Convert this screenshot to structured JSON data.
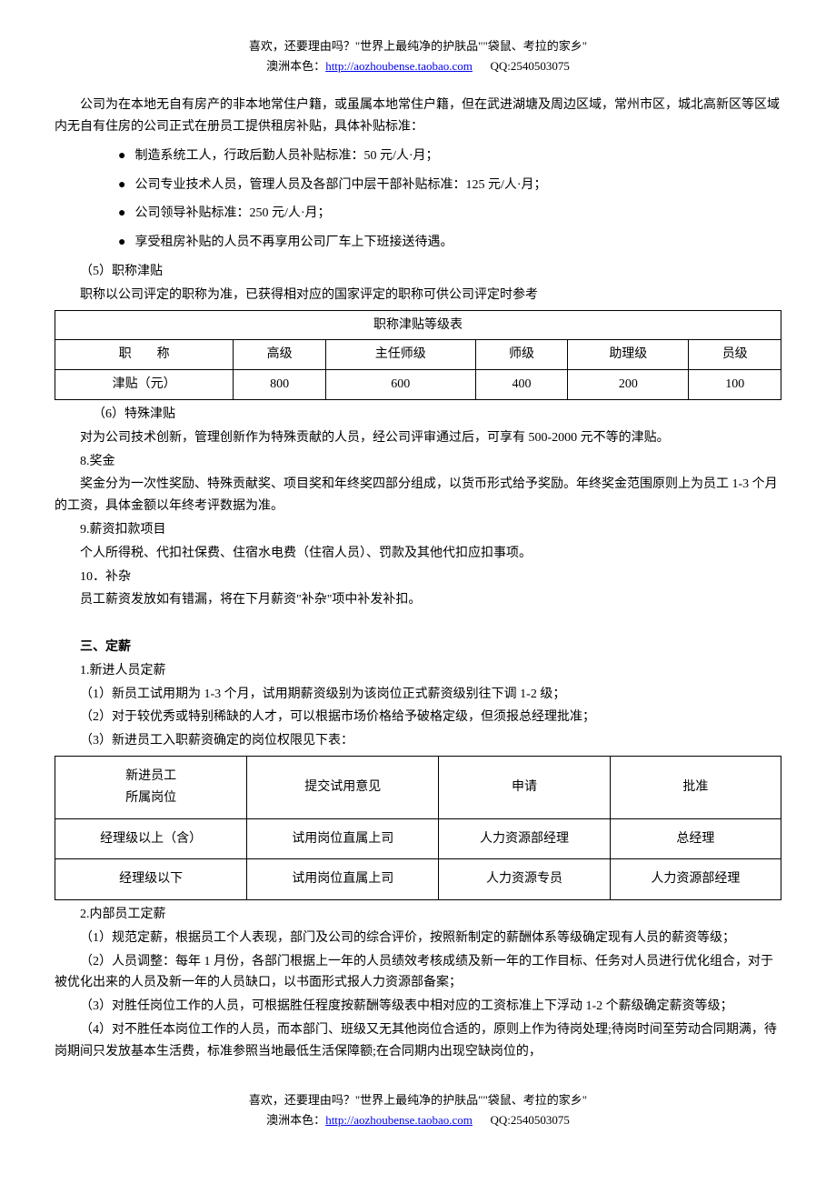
{
  "header": {
    "line1": "喜欢，还要理由吗？\"世界上最纯净的护肤品\"\"袋鼠、考拉的家乡\"",
    "brand": "澳洲本色：",
    "url": "http://aozhoubense.taobao.com",
    "qq": "QQ:2540503075"
  },
  "intro_para": "公司为在本地无自有房产的非本地常住户籍，或虽属本地常住户籍，但在武进湖塘及周边区域，常州市区，城北高新区等区域内无自有住房的公司正式在册员工提供租房补贴，具体补贴标准：",
  "bullets": {
    "b1": "制造系统工人，行政后勤人员补贴标准：50 元/人·月；",
    "b2": "公司专业技术人员，管理人员及各部门中层干部补贴标准：125 元/人·月；",
    "b3": "公司领导补贴标准：250 元/人·月；",
    "b4": "享受租房补贴的人员不再享用公司厂车上下班接送待遇。"
  },
  "s5_title": "（5）职称津贴",
  "s5_text": "职称以公司评定的职称为准，已获得相对应的国家评定的职称可供公司评定时参考",
  "table1": {
    "title": "职称津贴等级表",
    "headers": [
      "职　　称",
      "高级",
      "主任师级",
      "师级",
      "助理级",
      "员级"
    ],
    "row_label": "津贴（元）",
    "values": [
      "800",
      "600",
      "400",
      "200",
      "100"
    ]
  },
  "s6_title": "（6）特殊津贴",
  "s6_text": "对为公司技术创新，管理创新作为特殊贡献的人员，经公司评审通过后，可享有 500-2000 元不等的津贴。",
  "s8_title": "8.奖金",
  "s8_text": "奖金分为一次性奖励、特殊贡献奖、项目奖和年终奖四部分组成，以货币形式给予奖励。年终奖金范围原则上为员工 1-3 个月的工资，具体金额以年终考评数据为准。",
  "s9_title": "9.薪资扣款项目",
  "s9_text": "个人所得税、代扣社保费、住宿水电费（住宿人员）、罚款及其他代扣应扣事项。",
  "s10_title": "10．补杂",
  "s10_text": "员工薪资发放如有错漏，将在下月薪资\"补杂\"项中补发补扣。",
  "sec3_heading": "三、定薪",
  "sec3_1_title": "1.新进人员定薪",
  "sec3_1_a": "（1）新员工试用期为 1-3 个月，试用期薪资级别为该岗位正式薪资级别往下调 1-2 级；",
  "sec3_1_b": "（2）对于较优秀或特别稀缺的人才，可以根据市场价格给予破格定级，但须报总经理批准；",
  "sec3_1_c": "（3）新进员工入职薪资确定的岗位权限见下表：",
  "table2": {
    "headers": [
      "新进员工\n所属岗位",
      "提交试用意见",
      "申请",
      "批准"
    ],
    "rows": [
      [
        "经理级以上（含）",
        "试用岗位直属上司",
        "人力资源部经理",
        "总经理"
      ],
      [
        "经理级以下",
        "试用岗位直属上司",
        "人力资源专员",
        "人力资源部经理"
      ]
    ]
  },
  "sec3_2_title": "2.内部员工定薪",
  "sec3_2_a": "（1）规范定薪，根据员工个人表现，部门及公司的综合评价，按照新制定的薪酬体系等级确定现有人员的薪资等级；",
  "sec3_2_b": "（2）人员调整：每年 1 月份，各部门根据上一年的人员绩效考核成绩及新一年的工作目标、任务对人员进行优化组合，对于被优化出来的人员及新一年的人员缺口，以书面形式报人力资源部备案；",
  "sec3_2_c": "（3）对胜任岗位工作的人员，可根据胜任程度按薪酬等级表中相对应的工资标准上下浮动 1-2 个薪级确定薪资等级；",
  "sec3_2_d": "（4）对不胜任本岗位工作的人员，而本部门、班级又无其他岗位合适的，原则上作为待岗处理;待岗时间至劳动合同期满，待岗期间只发放基本生活费，标准参照当地最低生活保障额;在合同期内出现空缺岗位的，"
}
